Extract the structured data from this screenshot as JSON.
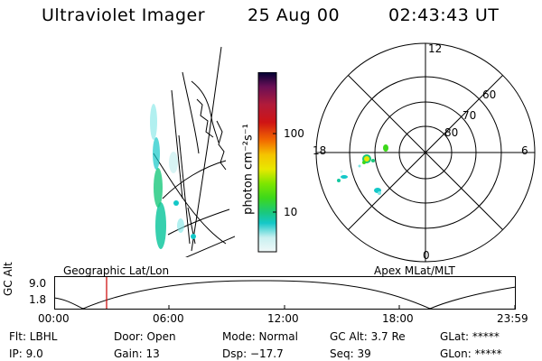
{
  "header": {
    "title": "Ultraviolet Imager",
    "date": "25 Aug 00",
    "time": "02:43:43 UT"
  },
  "colorbar": {
    "unit_label": "photon cm⁻²s⁻¹",
    "ticks": [
      "100",
      "10"
    ],
    "colors": [
      "#000033",
      "#3d0a3d",
      "#6a0f55",
      "#8f1a5f",
      "#b11b3a",
      "#cf1414",
      "#e23a0a",
      "#f26a00",
      "#fa9a00",
      "#f5c400",
      "#e8e800",
      "#b8f000",
      "#7ee600",
      "#3dd81b",
      "#1ac87c",
      "#14c8c8",
      "#7de6e6",
      "#c8f0f0",
      "#f0f8f8"
    ]
  },
  "polar": {
    "lat_labels": [
      "80",
      "70",
      "60"
    ],
    "mlt_labels": {
      "top": "12",
      "left": "18",
      "right": "6",
      "bottom": "0"
    }
  },
  "track": {
    "left_caption": "Geographic Lat/Lon",
    "right_caption": "Apex MLat/MLT",
    "ylabel": "GC Alt",
    "y_ticks": [
      "9.0",
      "1.8"
    ],
    "x_ticks": [
      "00:00",
      "06:00",
      "12:00",
      "18:00",
      "23:59"
    ],
    "current_time_marker": "02:43",
    "marker_color": "#cc0000"
  },
  "info": {
    "col1": [
      "Flt: LBHL",
      "IP: 9.0"
    ],
    "col2": [
      "Door: Open",
      "Gain: 13"
    ],
    "col3": [
      "Mode: Normal",
      "Dsp: −17.7"
    ],
    "col4": [
      "GC Alt: 3.7 Re",
      "Seq: 39"
    ],
    "col5": [
      "GLat: *****",
      "GLon: *****"
    ]
  }
}
